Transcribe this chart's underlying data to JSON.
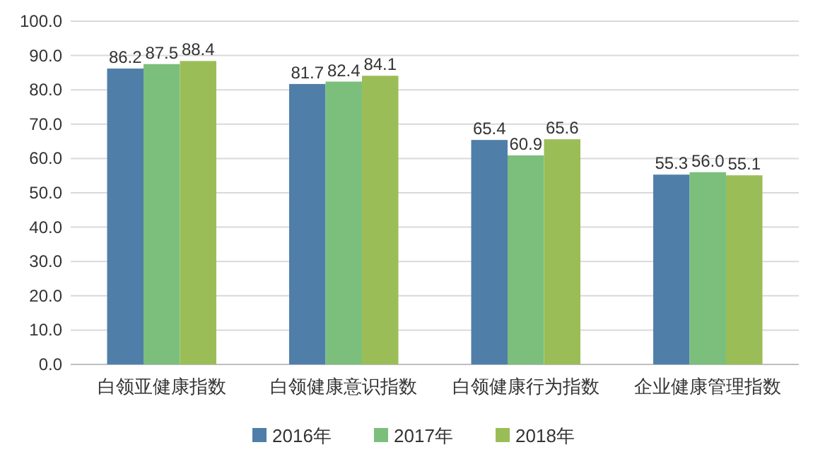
{
  "chart_data": {
    "type": "bar",
    "categories": [
      "白领亚健康指数",
      "白领健康意识指数",
      "白领健康行为指数",
      "企业健康管理指数"
    ],
    "series": [
      {
        "name": "2016年",
        "color": "#4f7fa8",
        "values": [
          86.2,
          81.7,
          65.4,
          55.3
        ],
        "value_labels": [
          "86.2",
          "81.7",
          "65.4",
          "55.3"
        ]
      },
      {
        "name": "2017年",
        "color": "#7cbf7c",
        "values": [
          87.5,
          82.4,
          60.9,
          56.0
        ],
        "value_labels": [
          "87.5",
          "82.4",
          "60.9",
          "56.0"
        ]
      },
      {
        "name": "2018年",
        "color": "#9bbd57",
        "values": [
          88.4,
          84.1,
          65.6,
          55.1
        ],
        "value_labels": [
          "88.4",
          "84.1",
          "65.6",
          "55.1"
        ]
      }
    ],
    "ylim": [
      0,
      100
    ],
    "yticks": [
      {
        "value": 0,
        "label": "0.0"
      },
      {
        "value": 10,
        "label": "10.0"
      },
      {
        "value": 20,
        "label": "20.0"
      },
      {
        "value": 30,
        "label": "30.0"
      },
      {
        "value": 40,
        "label": "40.0"
      },
      {
        "value": 50,
        "label": "50.0"
      },
      {
        "value": 60,
        "label": "60.0"
      },
      {
        "value": 70,
        "label": "70.0"
      },
      {
        "value": 80,
        "label": "80.0"
      },
      {
        "value": 90,
        "label": "90.0"
      },
      {
        "value": 100,
        "label": "100.0"
      }
    ],
    "grid": "y",
    "legend": "bottom"
  }
}
